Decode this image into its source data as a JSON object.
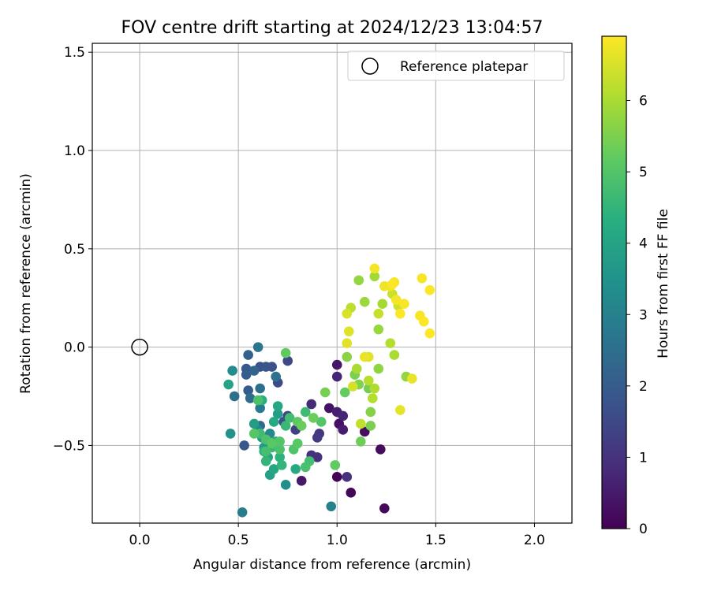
{
  "chart_data": {
    "type": "scatter",
    "title": "FOV centre drift starting at 2024/12/23 13:04:57",
    "xlabel": "Angular distance from reference (arcmin)",
    "ylabel": "Rotation from reference (arcmin)",
    "xlim": [
      -0.24,
      2.19
    ],
    "ylim": [
      -0.895,
      1.545
    ],
    "xticks": [
      0.0,
      0.5,
      1.0,
      1.5,
      2.0
    ],
    "xtick_labels": [
      "0.0",
      "0.5",
      "1.0",
      "1.5",
      "2.0"
    ],
    "yticks": [
      -0.5,
      0.0,
      0.5,
      1.0,
      1.5
    ],
    "ytick_labels": [
      "−0.5",
      "0.0",
      "0.5",
      "1.0",
      "1.5"
    ],
    "grid": true,
    "legend": {
      "position": "upper right",
      "entries": [
        "Reference platepar"
      ]
    },
    "reference_point": {
      "x": 0.0,
      "y": 0.0,
      "name": "Reference platepar"
    },
    "colorbar": {
      "label": "Hours from first FF file",
      "range": [
        0,
        6.9
      ],
      "ticks": [
        0,
        1,
        2,
        3,
        4,
        5,
        6
      ],
      "tick_labels": [
        "0",
        "1",
        "2",
        "3",
        "4",
        "5",
        "6"
      ],
      "colormap": "viridis"
    },
    "points": [
      [
        1.0,
        -0.66,
        0.05
      ],
      [
        1.07,
        -0.74,
        0.1
      ],
      [
        1.24,
        -0.82,
        0.15
      ],
      [
        1.22,
        -0.52,
        0.2
      ],
      [
        1.14,
        -0.43,
        0.25
      ],
      [
        1.01,
        -0.39,
        0.3
      ],
      [
        0.96,
        -0.31,
        0.35
      ],
      [
        1.0,
        -0.09,
        0.4
      ],
      [
        0.82,
        -0.68,
        0.45
      ],
      [
        1.03,
        -0.42,
        0.55
      ],
      [
        1.0,
        -0.33,
        0.6
      ],
      [
        1.03,
        -0.35,
        0.7
      ],
      [
        1.0,
        -0.15,
        0.7
      ],
      [
        0.87,
        -0.29,
        0.8
      ],
      [
        0.9,
        -0.56,
        0.9
      ],
      [
        0.87,
        -0.55,
        0.95
      ],
      [
        1.05,
        -0.66,
        1.0
      ],
      [
        0.91,
        -0.44,
        1.1
      ],
      [
        0.9,
        -0.46,
        1.2
      ],
      [
        0.79,
        -0.42,
        1.3
      ],
      [
        0.75,
        -0.35,
        1.4
      ],
      [
        0.75,
        -0.07,
        1.5
      ],
      [
        0.7,
        -0.18,
        1.55
      ],
      [
        0.73,
        -0.38,
        1.6
      ],
      [
        0.67,
        -0.1,
        1.7
      ],
      [
        0.61,
        -0.1,
        1.75
      ],
      [
        0.64,
        -0.1,
        1.85
      ],
      [
        0.53,
        -0.5,
        1.9
      ],
      [
        0.54,
        -0.11,
        1.95
      ],
      [
        0.54,
        -0.14,
        2.0
      ],
      [
        0.55,
        -0.22,
        2.0
      ],
      [
        0.55,
        -0.04,
        2.1
      ],
      [
        0.58,
        -0.12,
        2.2
      ],
      [
        0.61,
        -0.4,
        2.3
      ],
      [
        0.56,
        -0.26,
        2.4
      ],
      [
        0.61,
        -0.21,
        2.5
      ],
      [
        0.48,
        -0.25,
        2.5
      ],
      [
        0.69,
        -0.15,
        2.6
      ],
      [
        0.6,
        0.0,
        2.7
      ],
      [
        0.61,
        -0.31,
        2.8
      ],
      [
        0.52,
        -0.84,
        2.9
      ],
      [
        0.97,
        -0.81,
        3.0
      ],
      [
        0.6,
        -0.42,
        3.1
      ],
      [
        0.66,
        -0.44,
        3.2
      ],
      [
        0.47,
        -0.12,
        3.3
      ],
      [
        0.74,
        -0.7,
        3.4
      ],
      [
        0.46,
        -0.44,
        3.5
      ],
      [
        0.63,
        -0.51,
        3.6
      ],
      [
        0.62,
        -0.46,
        3.7
      ],
      [
        0.58,
        -0.39,
        3.8
      ],
      [
        0.7,
        -0.34,
        3.8
      ],
      [
        0.66,
        -0.65,
        3.9
      ],
      [
        0.45,
        -0.19,
        4.0
      ],
      [
        0.65,
        -0.56,
        4.0
      ],
      [
        0.68,
        -0.62,
        4.1
      ],
      [
        0.7,
        -0.3,
        4.1
      ],
      [
        0.68,
        -0.38,
        4.2
      ],
      [
        0.79,
        -0.62,
        4.2
      ],
      [
        0.62,
        -0.27,
        4.3
      ],
      [
        0.69,
        -0.48,
        4.3
      ],
      [
        0.63,
        -0.53,
        4.4
      ],
      [
        0.71,
        -0.56,
        4.4
      ],
      [
        0.72,
        -0.6,
        4.5
      ],
      [
        0.64,
        -0.58,
        4.5
      ],
      [
        0.74,
        -0.4,
        4.6
      ],
      [
        0.67,
        -0.51,
        4.6
      ],
      [
        0.84,
        -0.33,
        4.7
      ],
      [
        0.61,
        -0.44,
        4.7
      ],
      [
        0.76,
        -0.36,
        4.75
      ],
      [
        0.86,
        -0.58,
        4.8
      ],
      [
        0.64,
        -0.53,
        4.8
      ],
      [
        0.84,
        -0.61,
        4.85
      ],
      [
        0.6,
        -0.27,
        4.9
      ],
      [
        0.71,
        -0.52,
        4.9
      ],
      [
        0.64,
        -0.47,
        4.9
      ],
      [
        0.78,
        -0.52,
        4.95
      ],
      [
        0.92,
        -0.38,
        5.0
      ],
      [
        0.71,
        -0.48,
        5.0
      ],
      [
        0.58,
        -0.44,
        5.05
      ],
      [
        0.8,
        -0.49,
        5.1
      ],
      [
        0.67,
        -0.49,
        5.1
      ],
      [
        0.8,
        -0.38,
        5.15
      ],
      [
        0.74,
        -0.03,
        5.2
      ],
      [
        0.99,
        -0.6,
        5.2
      ],
      [
        1.04,
        -0.23,
        5.25
      ],
      [
        0.88,
        -0.36,
        5.3
      ],
      [
        0.82,
        -0.4,
        5.3
      ],
      [
        1.12,
        -0.48,
        5.35
      ],
      [
        1.16,
        -0.21,
        5.4
      ],
      [
        0.94,
        -0.23,
        5.45
      ],
      [
        1.17,
        -0.4,
        5.5
      ],
      [
        1.09,
        -0.14,
        5.5
      ],
      [
        1.11,
        -0.19,
        5.55
      ],
      [
        1.17,
        -0.33,
        5.6
      ],
      [
        1.05,
        -0.05,
        5.65
      ],
      [
        1.21,
        -0.11,
        5.7
      ],
      [
        1.11,
        0.34,
        5.75
      ],
      [
        1.35,
        -0.15,
        5.75
      ],
      [
        1.21,
        0.09,
        5.8
      ],
      [
        1.14,
        0.23,
        5.85
      ],
      [
        1.19,
        0.36,
        5.9
      ],
      [
        1.23,
        0.22,
        5.95
      ],
      [
        1.29,
        -0.04,
        6.0
      ],
      [
        1.1,
        -0.11,
        6.0
      ],
      [
        1.19,
        -0.21,
        6.05
      ],
      [
        1.27,
        0.02,
        6.1
      ],
      [
        1.18,
        -0.26,
        6.1
      ],
      [
        1.16,
        -0.17,
        6.15
      ],
      [
        1.07,
        0.2,
        6.2
      ],
      [
        1.12,
        -0.39,
        6.25
      ],
      [
        1.21,
        0.17,
        6.3
      ],
      [
        1.28,
        0.27,
        6.35
      ],
      [
        1.31,
        0.21,
        6.4
      ],
      [
        1.08,
        -0.2,
        6.45
      ],
      [
        1.05,
        0.17,
        6.5
      ],
      [
        1.06,
        0.08,
        6.55
      ],
      [
        1.05,
        0.02,
        6.6
      ],
      [
        1.16,
        -0.05,
        6.6
      ],
      [
        1.32,
        -0.32,
        6.65
      ],
      [
        1.38,
        -0.16,
        6.7
      ],
      [
        1.14,
        -0.05,
        6.7
      ],
      [
        1.24,
        0.31,
        6.75
      ],
      [
        1.27,
        0.31,
        6.75
      ],
      [
        1.29,
        0.33,
        6.8
      ],
      [
        1.19,
        0.4,
        6.8
      ],
      [
        1.3,
        0.24,
        6.8
      ],
      [
        1.34,
        0.22,
        6.85
      ],
      [
        1.43,
        0.35,
        6.85
      ],
      [
        1.42,
        0.16,
        6.85
      ],
      [
        1.47,
        0.29,
        6.88
      ],
      [
        1.44,
        0.13,
        6.88
      ],
      [
        1.47,
        0.07,
        6.9
      ],
      [
        1.28,
        0.32,
        6.9
      ],
      [
        1.32,
        0.17,
        6.9
      ]
    ]
  }
}
